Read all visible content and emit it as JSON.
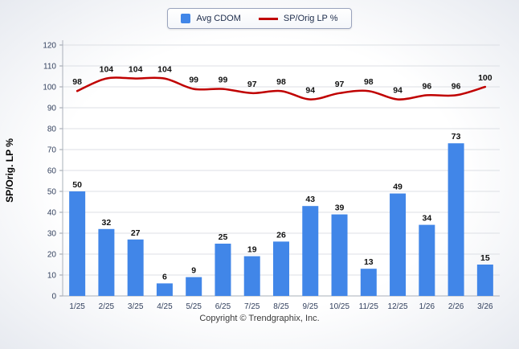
{
  "footer": {
    "text": "Copyright © Trendgraphix, Inc."
  },
  "chart_data": {
    "type": "bar",
    "categories": [
      "1/25",
      "2/25",
      "3/25",
      "4/25",
      "5/25",
      "6/25",
      "7/25",
      "8/25",
      "9/25",
      "10/25",
      "11/25",
      "12/25",
      "1/26",
      "2/26",
      "3/26"
    ],
    "series": [
      {
        "name": "Avg CDOM",
        "type": "bar",
        "color": "#4186e8",
        "values": [
          50,
          32,
          27,
          6,
          9,
          25,
          19,
          26,
          43,
          39,
          13,
          49,
          34,
          73,
          15
        ]
      },
      {
        "name": "SP/Orig LP %",
        "type": "line",
        "color": "#c00000",
        "values": [
          98,
          104,
          104,
          104,
          99,
          99,
          97,
          98,
          94,
          97,
          98,
          94,
          96,
          96,
          100
        ]
      }
    ],
    "title": "",
    "xlabel": "",
    "ylabel": "SP/Orig. LP %",
    "ylim": [
      0,
      120
    ],
    "ytick_step": 10,
    "grid": true,
    "legend_position": "top"
  }
}
